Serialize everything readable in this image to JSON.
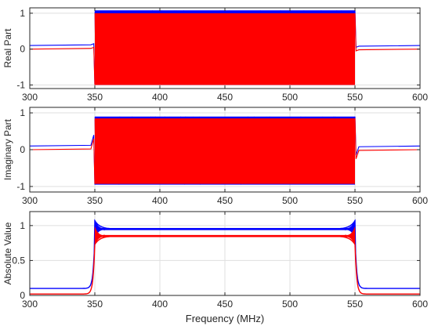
{
  "colors": {
    "series_blue": "#0000ff",
    "series_red": "#ff0000",
    "axis": "#262626",
    "grid": "#dfdfdf",
    "background": "#ffffff"
  },
  "figure": {
    "xlabel": "Frequency (MHz)"
  },
  "chart_data": [
    {
      "type": "line",
      "ylabel": "Real Part",
      "xlim": [
        300,
        600
      ],
      "ylim": [
        -1.1,
        1.15
      ],
      "xticks": [
        300,
        350,
        400,
        450,
        500,
        550,
        600
      ],
      "yticks": [
        -1,
        0,
        1
      ],
      "grid": true,
      "legend": "none",
      "passband": [
        350,
        550
      ],
      "series": [
        {
          "color": "blue",
          "outside_value": 0.1,
          "inband_envelope": [
            -1.0,
            1.08
          ]
        },
        {
          "color": "red",
          "outside_value": 0.0,
          "inband_envelope": [
            -1.0,
            1.0
          ]
        }
      ]
    },
    {
      "type": "line",
      "ylabel": "Imaginary Part",
      "xlim": [
        300,
        600
      ],
      "ylim": [
        -1.15,
        1.15
      ],
      "xticks": [
        300,
        350,
        400,
        450,
        500,
        550,
        600
      ],
      "yticks": [
        -1,
        0,
        1
      ],
      "grid": true,
      "legend": "none",
      "passband": [
        350,
        550
      ],
      "series": [
        {
          "color": "blue",
          "outside_value": 0.1,
          "inband_envelope": [
            -0.95,
            0.9
          ]
        },
        {
          "color": "red",
          "outside_value": 0.0,
          "inband_envelope": [
            -0.93,
            0.85
          ]
        }
      ]
    },
    {
      "type": "line",
      "ylabel": "Absolute Value",
      "xlim": [
        300,
        600
      ],
      "ylim": [
        0,
        1.2
      ],
      "xticks": [
        300,
        350,
        400,
        450,
        500,
        550,
        600
      ],
      "yticks": [
        0,
        0.5,
        1
      ],
      "grid": true,
      "legend": "none",
      "passband": [
        350,
        550
      ],
      "series": [
        {
          "color": "blue",
          "outside_value": 0.1,
          "inband_level": 0.95
        },
        {
          "color": "red",
          "outside_value": 0.02,
          "inband_level": 0.85
        }
      ]
    }
  ]
}
